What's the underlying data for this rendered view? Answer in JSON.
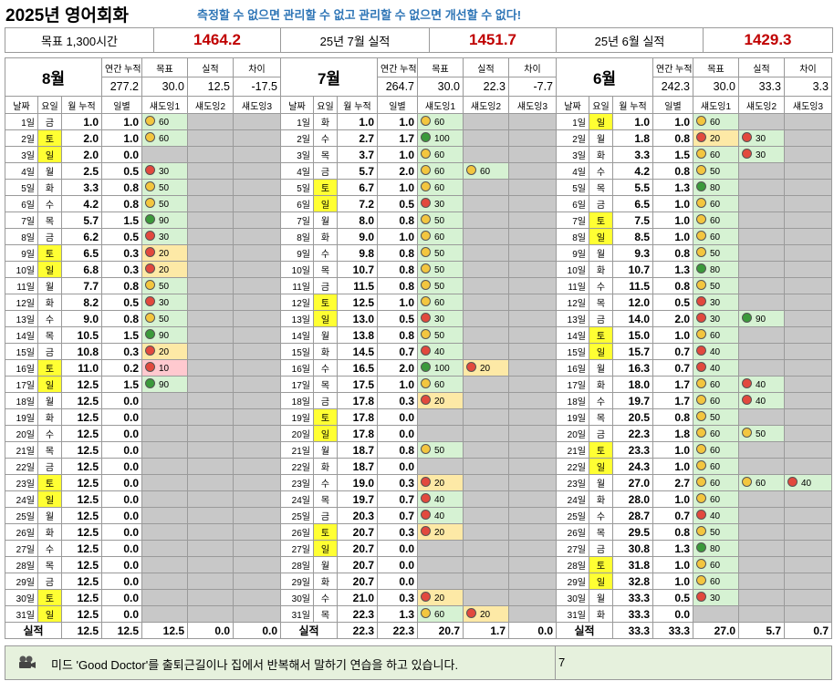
{
  "header": {
    "title": "2025년 영어회화",
    "slogan": "측정할 수 없으면 관리할 수 없고 관리할 수 없으면 개선할 수 없다!"
  },
  "summary": [
    {
      "label": "목표 1,300시간",
      "value": "1464.2"
    },
    {
      "label": "25년 7월 실적",
      "value": "1451.7"
    },
    {
      "label": "25년 6월 실적",
      "value": "1429.3"
    }
  ],
  "months": [
    {
      "name": "8월",
      "header_labels": [
        "연간 누적",
        "목표",
        "실적",
        "차이"
      ],
      "header_values": [
        "277.2",
        "30.0",
        "12.5",
        "-17.5"
      ],
      "columns": [
        "날짜",
        "요일",
        "월 누적",
        "일별",
        "섀도잉1",
        "섀도잉2",
        "섀도잉3"
      ],
      "rows": [
        [
          "1일",
          "금",
          "1.0",
          "1.0",
          "60",
          null,
          null
        ],
        [
          "2일",
          "토",
          "2.0",
          "1.0",
          "60",
          null,
          null
        ],
        [
          "3일",
          "일",
          "2.0",
          "0.0",
          null,
          null,
          null
        ],
        [
          "4일",
          "월",
          "2.5",
          "0.5",
          "30",
          null,
          null
        ],
        [
          "5일",
          "화",
          "3.3",
          "0.8",
          "50",
          null,
          null
        ],
        [
          "6일",
          "수",
          "4.2",
          "0.8",
          "50",
          null,
          null
        ],
        [
          "7일",
          "목",
          "5.7",
          "1.5",
          "90",
          null,
          null
        ],
        [
          "8일",
          "금",
          "6.2",
          "0.5",
          "30",
          null,
          null
        ],
        [
          "9일",
          "토",
          "6.5",
          "0.3",
          "20",
          null,
          null
        ],
        [
          "10일",
          "일",
          "6.8",
          "0.3",
          "20",
          null,
          null
        ],
        [
          "11일",
          "월",
          "7.7",
          "0.8",
          "50",
          null,
          null
        ],
        [
          "12일",
          "화",
          "8.2",
          "0.5",
          "30",
          null,
          null
        ],
        [
          "13일",
          "수",
          "9.0",
          "0.8",
          "50",
          null,
          null
        ],
        [
          "14일",
          "목",
          "10.5",
          "1.5",
          "90",
          null,
          null
        ],
        [
          "15일",
          "금",
          "10.8",
          "0.3",
          "20",
          null,
          null
        ],
        [
          "16일",
          "토",
          "11.0",
          "0.2",
          "10",
          null,
          null
        ],
        [
          "17일",
          "일",
          "12.5",
          "1.5",
          "90",
          null,
          null
        ],
        [
          "18일",
          "월",
          "12.5",
          "0.0",
          null,
          null,
          null
        ],
        [
          "19일",
          "화",
          "12.5",
          "0.0",
          null,
          null,
          null
        ],
        [
          "20일",
          "수",
          "12.5",
          "0.0",
          null,
          null,
          null
        ],
        [
          "21일",
          "목",
          "12.5",
          "0.0",
          null,
          null,
          null
        ],
        [
          "22일",
          "금",
          "12.5",
          "0.0",
          null,
          null,
          null
        ],
        [
          "23일",
          "토",
          "12.5",
          "0.0",
          null,
          null,
          null
        ],
        [
          "24일",
          "일",
          "12.5",
          "0.0",
          null,
          null,
          null
        ],
        [
          "25일",
          "월",
          "12.5",
          "0.0",
          null,
          null,
          null
        ],
        [
          "26일",
          "화",
          "12.5",
          "0.0",
          null,
          null,
          null
        ],
        [
          "27일",
          "수",
          "12.5",
          "0.0",
          null,
          null,
          null
        ],
        [
          "28일",
          "목",
          "12.5",
          "0.0",
          null,
          null,
          null
        ],
        [
          "29일",
          "금",
          "12.5",
          "0.0",
          null,
          null,
          null
        ],
        [
          "30일",
          "토",
          "12.5",
          "0.0",
          null,
          null,
          null
        ],
        [
          "31일",
          "일",
          "12.5",
          "0.0",
          null,
          null,
          null
        ]
      ],
      "footer": {
        "label": "실적",
        "values": [
          "12.5",
          "12.5",
          "12.5",
          "0.0",
          "0.0"
        ]
      }
    },
    {
      "name": "7월",
      "header_labels": [
        "연간 누적",
        "목표",
        "실적",
        "차이"
      ],
      "header_values": [
        "264.7",
        "30.0",
        "22.3",
        "-7.7"
      ],
      "columns": [
        "날짜",
        "요일",
        "월 누적",
        "일별",
        "섀도잉1",
        "섀도잉2",
        "섀도잉3"
      ],
      "rows": [
        [
          "1일",
          "화",
          "1.0",
          "1.0",
          "60",
          null,
          null
        ],
        [
          "2일",
          "수",
          "2.7",
          "1.7",
          "100",
          null,
          null
        ],
        [
          "3일",
          "목",
          "3.7",
          "1.0",
          "60",
          null,
          null
        ],
        [
          "4일",
          "금",
          "5.7",
          "2.0",
          "60",
          "60",
          null
        ],
        [
          "5일",
          "토",
          "6.7",
          "1.0",
          "60",
          null,
          null
        ],
        [
          "6일",
          "일",
          "7.2",
          "0.5",
          "30",
          null,
          null
        ],
        [
          "7일",
          "월",
          "8.0",
          "0.8",
          "50",
          null,
          null
        ],
        [
          "8일",
          "화",
          "9.0",
          "1.0",
          "60",
          null,
          null
        ],
        [
          "9일",
          "수",
          "9.8",
          "0.8",
          "50",
          null,
          null
        ],
        [
          "10일",
          "목",
          "10.7",
          "0.8",
          "50",
          null,
          null
        ],
        [
          "11일",
          "금",
          "11.5",
          "0.8",
          "50",
          null,
          null
        ],
        [
          "12일",
          "토",
          "12.5",
          "1.0",
          "60",
          null,
          null
        ],
        [
          "13일",
          "일",
          "13.0",
          "0.5",
          "30",
          null,
          null
        ],
        [
          "14일",
          "월",
          "13.8",
          "0.8",
          "50",
          null,
          null
        ],
        [
          "15일",
          "화",
          "14.5",
          "0.7",
          "40",
          null,
          null
        ],
        [
          "16일",
          "수",
          "16.5",
          "2.0",
          "100",
          "20",
          null
        ],
        [
          "17일",
          "목",
          "17.5",
          "1.0",
          "60",
          null,
          null
        ],
        [
          "18일",
          "금",
          "17.8",
          "0.3",
          "20",
          null,
          null
        ],
        [
          "19일",
          "토",
          "17.8",
          "0.0",
          null,
          null,
          null
        ],
        [
          "20일",
          "일",
          "17.8",
          "0.0",
          null,
          null,
          null
        ],
        [
          "21일",
          "월",
          "18.7",
          "0.8",
          "50",
          null,
          null
        ],
        [
          "22일",
          "화",
          "18.7",
          "0.0",
          null,
          null,
          null
        ],
        [
          "23일",
          "수",
          "19.0",
          "0.3",
          "20",
          null,
          null
        ],
        [
          "24일",
          "목",
          "19.7",
          "0.7",
          "40",
          null,
          null
        ],
        [
          "25일",
          "금",
          "20.3",
          "0.7",
          "40",
          null,
          null
        ],
        [
          "26일",
          "토",
          "20.7",
          "0.3",
          "20",
          null,
          null
        ],
        [
          "27일",
          "일",
          "20.7",
          "0.0",
          null,
          null,
          null
        ],
        [
          "28일",
          "월",
          "20.7",
          "0.0",
          null,
          null,
          null
        ],
        [
          "29일",
          "화",
          "20.7",
          "0.0",
          null,
          null,
          null
        ],
        [
          "30일",
          "수",
          "21.0",
          "0.3",
          "20",
          null,
          null
        ],
        [
          "31일",
          "목",
          "22.3",
          "1.3",
          "60",
          "20",
          null
        ]
      ],
      "footer": {
        "label": "실적",
        "values": [
          "22.3",
          "22.3",
          "20.7",
          "1.7",
          "0.0"
        ]
      }
    },
    {
      "name": "6월",
      "header_labels": [
        "연간 누적",
        "목표",
        "실적",
        "차이"
      ],
      "header_values": [
        "242.3",
        "30.0",
        "33.3",
        "3.3"
      ],
      "columns": [
        "날짜",
        "요일",
        "월 누적",
        "일별",
        "섀도잉1",
        "섀도잉2",
        "섀도잉3"
      ],
      "rows": [
        [
          "1일",
          "일",
          "1.0",
          "1.0",
          "60",
          null,
          null
        ],
        [
          "2일",
          "월",
          "1.8",
          "0.8",
          "20",
          "30",
          null
        ],
        [
          "3일",
          "화",
          "3.3",
          "1.5",
          "60",
          "30",
          null
        ],
        [
          "4일",
          "수",
          "4.2",
          "0.8",
          "50",
          null,
          null
        ],
        [
          "5일",
          "목",
          "5.5",
          "1.3",
          "80",
          null,
          null
        ],
        [
          "6일",
          "금",
          "6.5",
          "1.0",
          "60",
          null,
          null
        ],
        [
          "7일",
          "토",
          "7.5",
          "1.0",
          "60",
          null,
          null
        ],
        [
          "8일",
          "일",
          "8.5",
          "1.0",
          "60",
          null,
          null
        ],
        [
          "9일",
          "월",
          "9.3",
          "0.8",
          "50",
          null,
          null
        ],
        [
          "10일",
          "화",
          "10.7",
          "1.3",
          "80",
          null,
          null
        ],
        [
          "11일",
          "수",
          "11.5",
          "0.8",
          "50",
          null,
          null
        ],
        [
          "12일",
          "목",
          "12.0",
          "0.5",
          "30",
          null,
          null
        ],
        [
          "13일",
          "금",
          "14.0",
          "2.0",
          "30",
          "90",
          null
        ],
        [
          "14일",
          "토",
          "15.0",
          "1.0",
          "60",
          null,
          null
        ],
        [
          "15일",
          "일",
          "15.7",
          "0.7",
          "40",
          null,
          null
        ],
        [
          "16일",
          "월",
          "16.3",
          "0.7",
          "40",
          null,
          null
        ],
        [
          "17일",
          "화",
          "18.0",
          "1.7",
          "60",
          "40",
          null
        ],
        [
          "18일",
          "수",
          "19.7",
          "1.7",
          "60",
          "40",
          null
        ],
        [
          "19일",
          "목",
          "20.5",
          "0.8",
          "50",
          null,
          null
        ],
        [
          "20일",
          "금",
          "22.3",
          "1.8",
          "60",
          "50",
          null
        ],
        [
          "21일",
          "토",
          "23.3",
          "1.0",
          "60",
          null,
          null
        ],
        [
          "22일",
          "일",
          "24.3",
          "1.0",
          "60",
          null,
          null
        ],
        [
          "23일",
          "월",
          "27.0",
          "2.7",
          "60",
          "60",
          "40"
        ],
        [
          "24일",
          "화",
          "28.0",
          "1.0",
          "60",
          null,
          null
        ],
        [
          "25일",
          "수",
          "28.7",
          "0.7",
          "40",
          null,
          null
        ],
        [
          "26일",
          "목",
          "29.5",
          "0.8",
          "50",
          null,
          null
        ],
        [
          "27일",
          "금",
          "30.8",
          "1.3",
          "80",
          null,
          null
        ],
        [
          "28일",
          "토",
          "31.8",
          "1.0",
          "60",
          null,
          null
        ],
        [
          "29일",
          "일",
          "32.8",
          "1.0",
          "60",
          null,
          null
        ],
        [
          "30일",
          "월",
          "33.3",
          "0.5",
          "30",
          null,
          null
        ],
        [
          "31일",
          "화",
          "33.3",
          "0.0",
          null,
          null,
          null
        ]
      ],
      "footer": {
        "label": "실적",
        "values": [
          "33.3",
          "33.3",
          "27.0",
          "5.7",
          "0.7"
        ]
      }
    }
  ],
  "note": {
    "text": "미드 'Good Doctor'를 출퇴근길이나 집에서 반복해서 말하기 연습을 하고 있습니다.",
    "page": "7"
  }
}
